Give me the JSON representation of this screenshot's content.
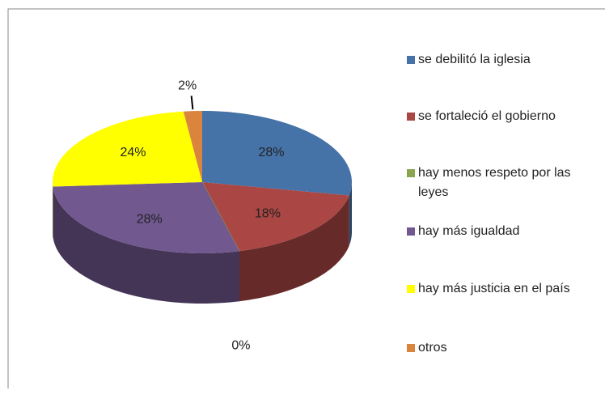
{
  "chart_data": {
    "type": "pie3d",
    "categories": [
      "se debilitó la iglesia",
      "se fortaleció el gobierno",
      "hay menos respeto por las leyes",
      "hay más igualdad",
      "hay más justicia en el país",
      "otros"
    ],
    "values": [
      28,
      18,
      0,
      28,
      24,
      2
    ],
    "value_labels": [
      "28%",
      "18%",
      "0%",
      "28%",
      "24%",
      "2%"
    ],
    "colors": [
      "#4572A7",
      "#AA4643",
      "#89A54E",
      "#71588F",
      "#FFFF00",
      "#DB843D"
    ],
    "legend": "right"
  }
}
